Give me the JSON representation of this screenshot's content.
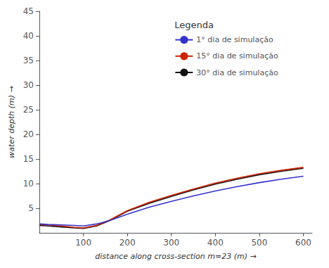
{
  "chart_data": {
    "type": "line",
    "xlabel": "distance along cross-section m=23 (m) →",
    "ylabel": "water depth (m) →",
    "legend_title": "Legenda",
    "x": [
      0,
      20,
      50,
      80,
      100,
      130,
      160,
      200,
      250,
      300,
      350,
      400,
      450,
      500,
      550,
      600
    ],
    "series": [
      {
        "name": "1° dia de simulação",
        "color": "#3333cc",
        "values": [
          1.8,
          1.7,
          1.6,
          1.5,
          1.4,
          1.8,
          2.5,
          3.8,
          5.2,
          6.4,
          7.5,
          8.5,
          9.4,
          10.2,
          10.9,
          11.5
        ]
      },
      {
        "name": "15° dia de simulação",
        "color": "#cc2200",
        "values": [
          1.7,
          1.6,
          1.4,
          1.1,
          1.0,
          1.5,
          2.6,
          4.5,
          6.2,
          7.6,
          8.9,
          10.1,
          11.1,
          12.0,
          12.7,
          13.3
        ]
      },
      {
        "name": "30° dia de simulação",
        "color": "#111111",
        "values": [
          1.5,
          1.4,
          1.2,
          1.0,
          0.9,
          1.4,
          2.5,
          4.4,
          6.0,
          7.4,
          8.7,
          9.9,
          10.9,
          11.8,
          12.5,
          13.1
        ]
      }
    ],
    "xlim": [
      0,
      620
    ],
    "ylim": [
      0,
      45
    ],
    "xticks": [
      100,
      200,
      300,
      400,
      500,
      600
    ],
    "yticks": [
      5,
      10,
      15,
      20,
      25,
      30,
      35,
      40,
      45
    ],
    "grid": false,
    "legend": "upper right"
  }
}
